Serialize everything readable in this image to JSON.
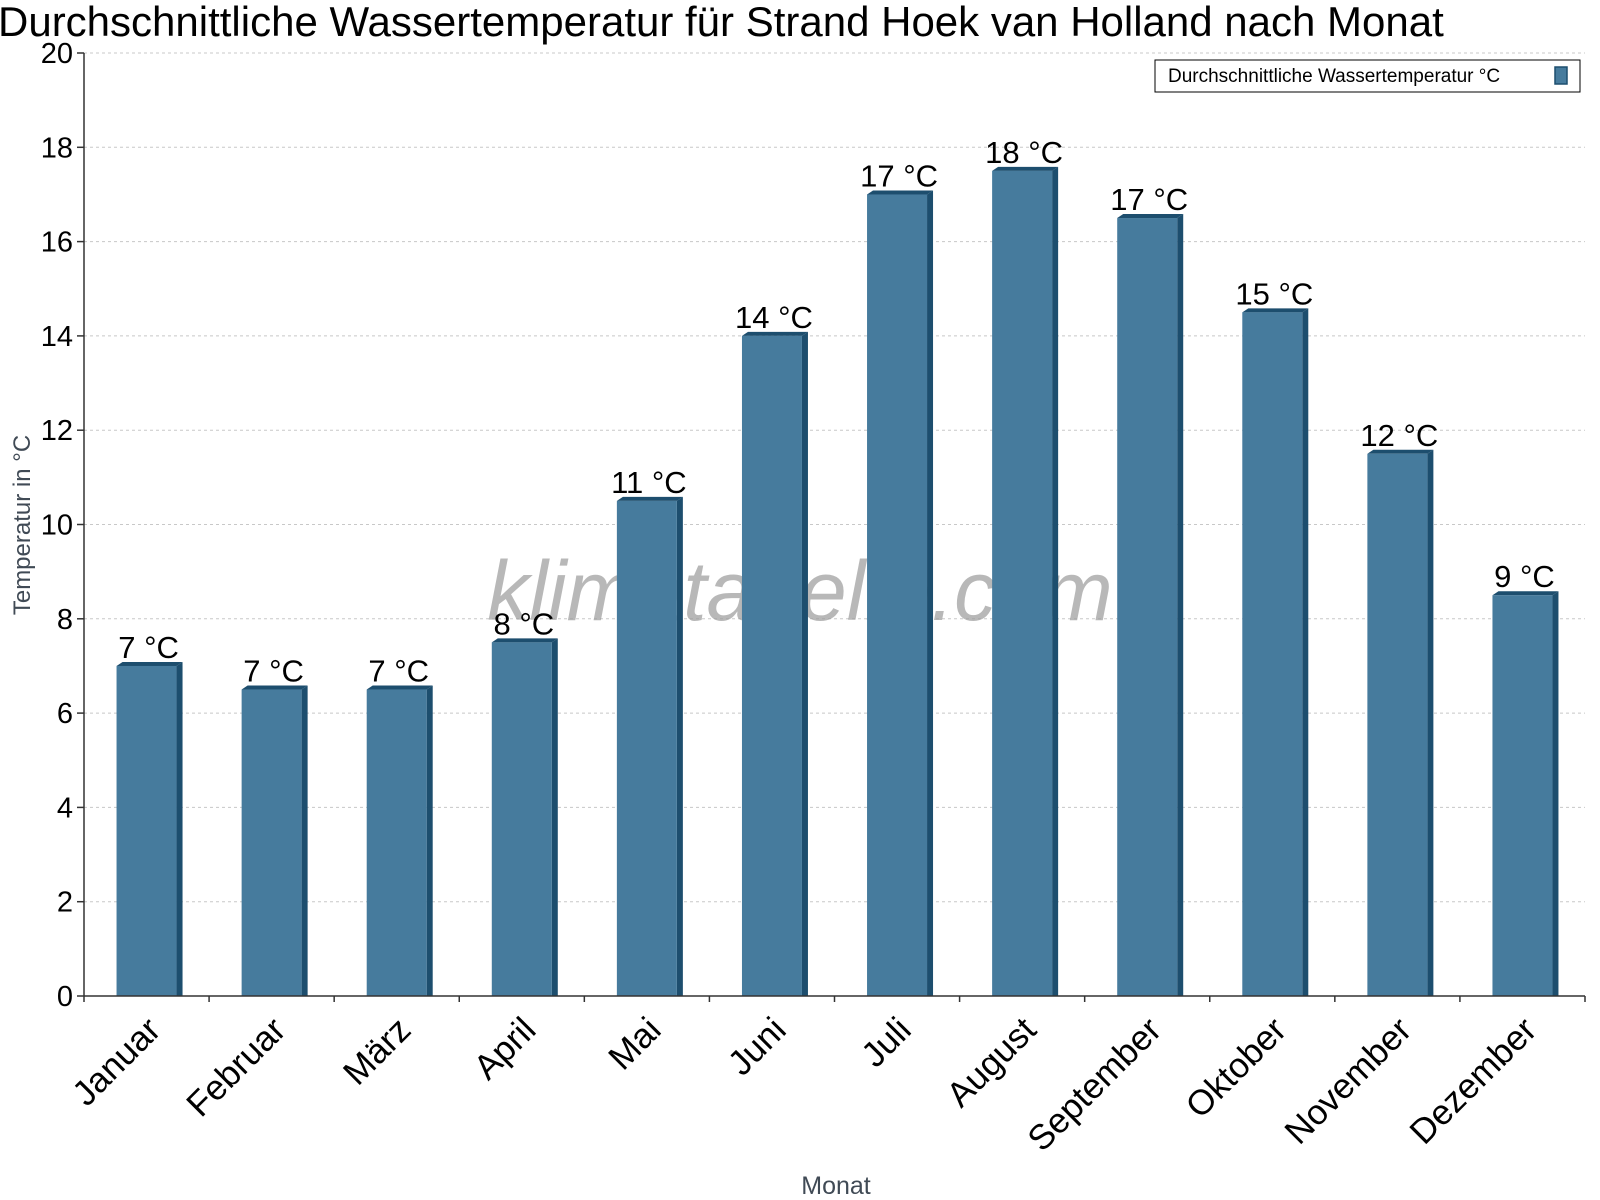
{
  "chart_data": {
    "type": "bar",
    "title": "Durchschnittliche Wassertemperatur für Strand Hoek van Holland nach Monat",
    "xlabel": "Monat",
    "ylabel": "Temperatur in °C",
    "ylim": [
      0,
      20
    ],
    "yticks": [
      0,
      2,
      4,
      6,
      8,
      10,
      12,
      14,
      16,
      18,
      20
    ],
    "grid": true,
    "legend_position": "top-right",
    "watermark": "klimatabelle.com",
    "categories": [
      "Januar",
      "Februar",
      "März",
      "April",
      "Mai",
      "Juni",
      "Juli",
      "August",
      "September",
      "Oktober",
      "November",
      "Dezember"
    ],
    "series": [
      {
        "name": "Durchschnittliche Wassertemperatur °C",
        "values": [
          7,
          6.5,
          6.5,
          7.5,
          10.5,
          14,
          17,
          17.5,
          16.5,
          14.5,
          11.5,
          8.5
        ],
        "labels": [
          "7 °C",
          "7 °C",
          "7 °C",
          "8 °C",
          "11 °C",
          "14 °C",
          "17 °C",
          "18 °C",
          "17 °C",
          "15 °C",
          "12 °C",
          "9 °C"
        ],
        "color": "#467b9d",
        "shade_color": "#1d4e6e"
      }
    ]
  }
}
